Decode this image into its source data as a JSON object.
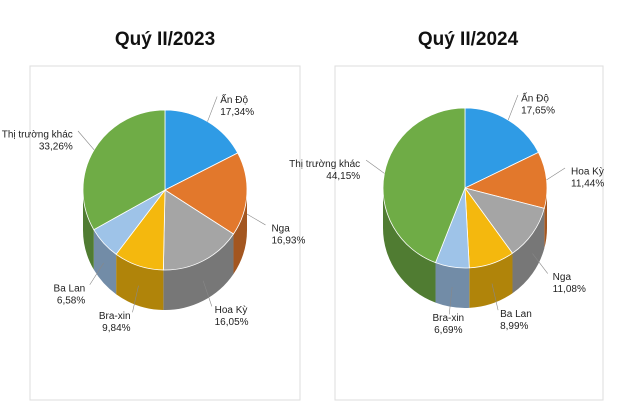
{
  "chart_data": [
    {
      "type": "pie",
      "title": "Quý II/2023",
      "categories": [
        "Ấn Độ",
        "Nga",
        "Hoa Kỳ",
        "Bra-xin",
        "Ba Lan",
        "Thị trường khác"
      ],
      "values": [
        17.34,
        16.93,
        16.05,
        9.84,
        6.58,
        33.26
      ],
      "value_labels": [
        "17,34%",
        "16,93%",
        "16,05%",
        "9,84%",
        "6,58%",
        "33,26%"
      ],
      "colors": [
        "#2f9be5",
        "#e2782c",
        "#a5a5a5",
        "#f4b80e",
        "#9ec3e8",
        "#6fac46"
      ]
    },
    {
      "type": "pie",
      "title": "Quý II/2024",
      "categories": [
        "Ấn Độ",
        "Hoa Kỳ",
        "Nga",
        "Ba Lan",
        "Bra-xin",
        "Thị trường khác"
      ],
      "values": [
        17.65,
        11.44,
        11.08,
        8.99,
        6.69,
        44.15
      ],
      "value_labels": [
        "17,65%",
        "11,44%",
        "11,08%",
        "8,99%",
        "6,69%",
        "44,15%"
      ],
      "colors": [
        "#2f9be5",
        "#e2782c",
        "#a5a5a5",
        "#f4b80e",
        "#9ec3e8",
        "#6fac46"
      ]
    }
  ]
}
